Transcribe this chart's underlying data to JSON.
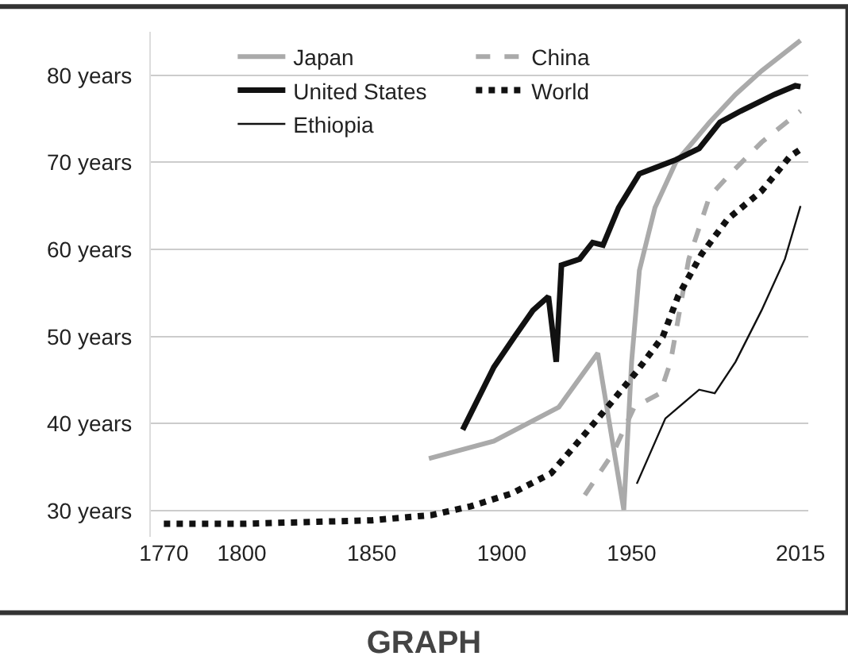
{
  "chart_data": {
    "type": "line",
    "title": "GRAPH",
    "xlim": [
      1765,
      2018
    ],
    "xticks": [
      1770,
      1800,
      1850,
      1900,
      1950,
      2015
    ],
    "ylim": [
      27,
      85
    ],
    "yticks": [
      {
        "value": 30,
        "label": "30 years"
      },
      {
        "value": 40,
        "label": "40 years"
      },
      {
        "value": 50,
        "label": "50 years"
      },
      {
        "value": 60,
        "label": "60 years"
      },
      {
        "value": 70,
        "label": "70 years"
      },
      {
        "value": 80,
        "label": "80 years"
      }
    ],
    "grid": "y",
    "legend": "top left",
    "marker": "none",
    "series": [
      {
        "name": "Japan",
        "color": "#aaaaaa",
        "line_style": "solid",
        "x": [
          1872,
          1897,
          1922,
          1937,
          1947,
          1950,
          1953,
          1959,
          1967,
          1980,
          1990,
          2000,
          2015
        ],
        "values": [
          36,
          38,
          41.9,
          48.1,
          30.1,
          47.1,
          57.6,
          64.8,
          70,
          74.6,
          77.8,
          80.5,
          84
        ]
      },
      {
        "name": "China",
        "color": "#aaaaaa",
        "line_style": "dashed",
        "x": [
          1932,
          1943,
          1951,
          1961,
          1965,
          1972,
          1980,
          1988,
          2000,
          2015
        ],
        "values": [
          31.8,
          36.7,
          41.9,
          43.5,
          47.1,
          58.9,
          66.1,
          68.7,
          72.3,
          75.9
        ]
      },
      {
        "name": "United States",
        "color": "#111111",
        "line_style": "solid",
        "x": [
          1885,
          1897,
          1905,
          1912,
          1918,
          1921,
          1923,
          1930,
          1935,
          1939,
          1945,
          1953,
          1967,
          1976,
          1984,
          1992,
          2005,
          2013,
          2015
        ],
        "values": [
          39.3,
          46.5,
          50,
          53,
          54.6,
          47.1,
          58.2,
          58.9,
          60.8,
          60.5,
          64.8,
          68.7,
          70.3,
          71.6,
          74.6,
          75.9,
          77.8,
          78.8,
          78.7
        ]
      },
      {
        "name": "World",
        "color": "#111111",
        "line_style": "dotted",
        "x": [
          1770,
          1800,
          1850,
          1873,
          1888,
          1904,
          1919,
          1930,
          1941,
          1952,
          1962,
          1968,
          1977,
          1987,
          2000,
          2011,
          2015
        ],
        "values": [
          28.5,
          28.5,
          28.9,
          29.5,
          30.5,
          32,
          34.3,
          38.1,
          42,
          46,
          50,
          54.7,
          59.5,
          63.5,
          66.7,
          70.7,
          71.5
        ]
      },
      {
        "name": "Ethiopia",
        "color": "#111111",
        "line_style": "solid",
        "x": [
          1952,
          1963,
          1976,
          1982,
          1990,
          2000,
          2009,
          2015
        ],
        "values": [
          33.1,
          40.6,
          43.9,
          43.5,
          47.1,
          53,
          58.9,
          65
        ]
      }
    ]
  }
}
